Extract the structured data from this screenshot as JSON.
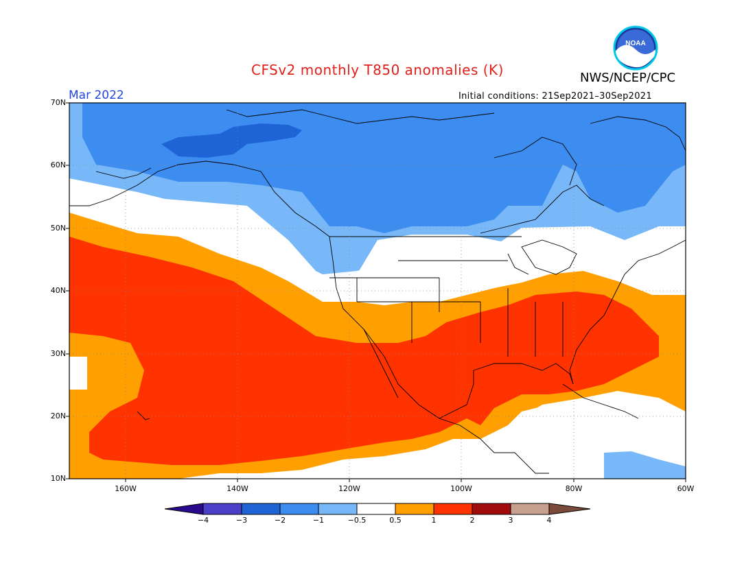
{
  "title": "CFSv2 monthly T850 anomalies (K)",
  "org": "NWS/NCEP/CPC",
  "logo": {
    "text": "NOAA"
  },
  "period": "Mar 2022",
  "initial_conditions": "Initial conditions: 21Sep2021–30Sep2021",
  "lat_labels": [
    "70N",
    "60N",
    "50N",
    "40N",
    "30N",
    "20N",
    "10N"
  ],
  "lon_labels": [
    "160W",
    "140W",
    "120W",
    "100W",
    "80W",
    "60W"
  ],
  "colorbar": {
    "ticks": [
      "−4",
      "−3",
      "−2",
      "−1",
      "−0.5",
      "0.5",
      "1",
      "2",
      "3",
      "4"
    ],
    "colors": [
      "#2a0a8c",
      "#4a3fc8",
      "#1f64d6",
      "#3d8cf0",
      "#79b8f8",
      "#ffffff",
      "#ffa000",
      "#ff3300",
      "#a00c0c",
      "#c8a090",
      "#7a4a3a"
    ]
  }
}
